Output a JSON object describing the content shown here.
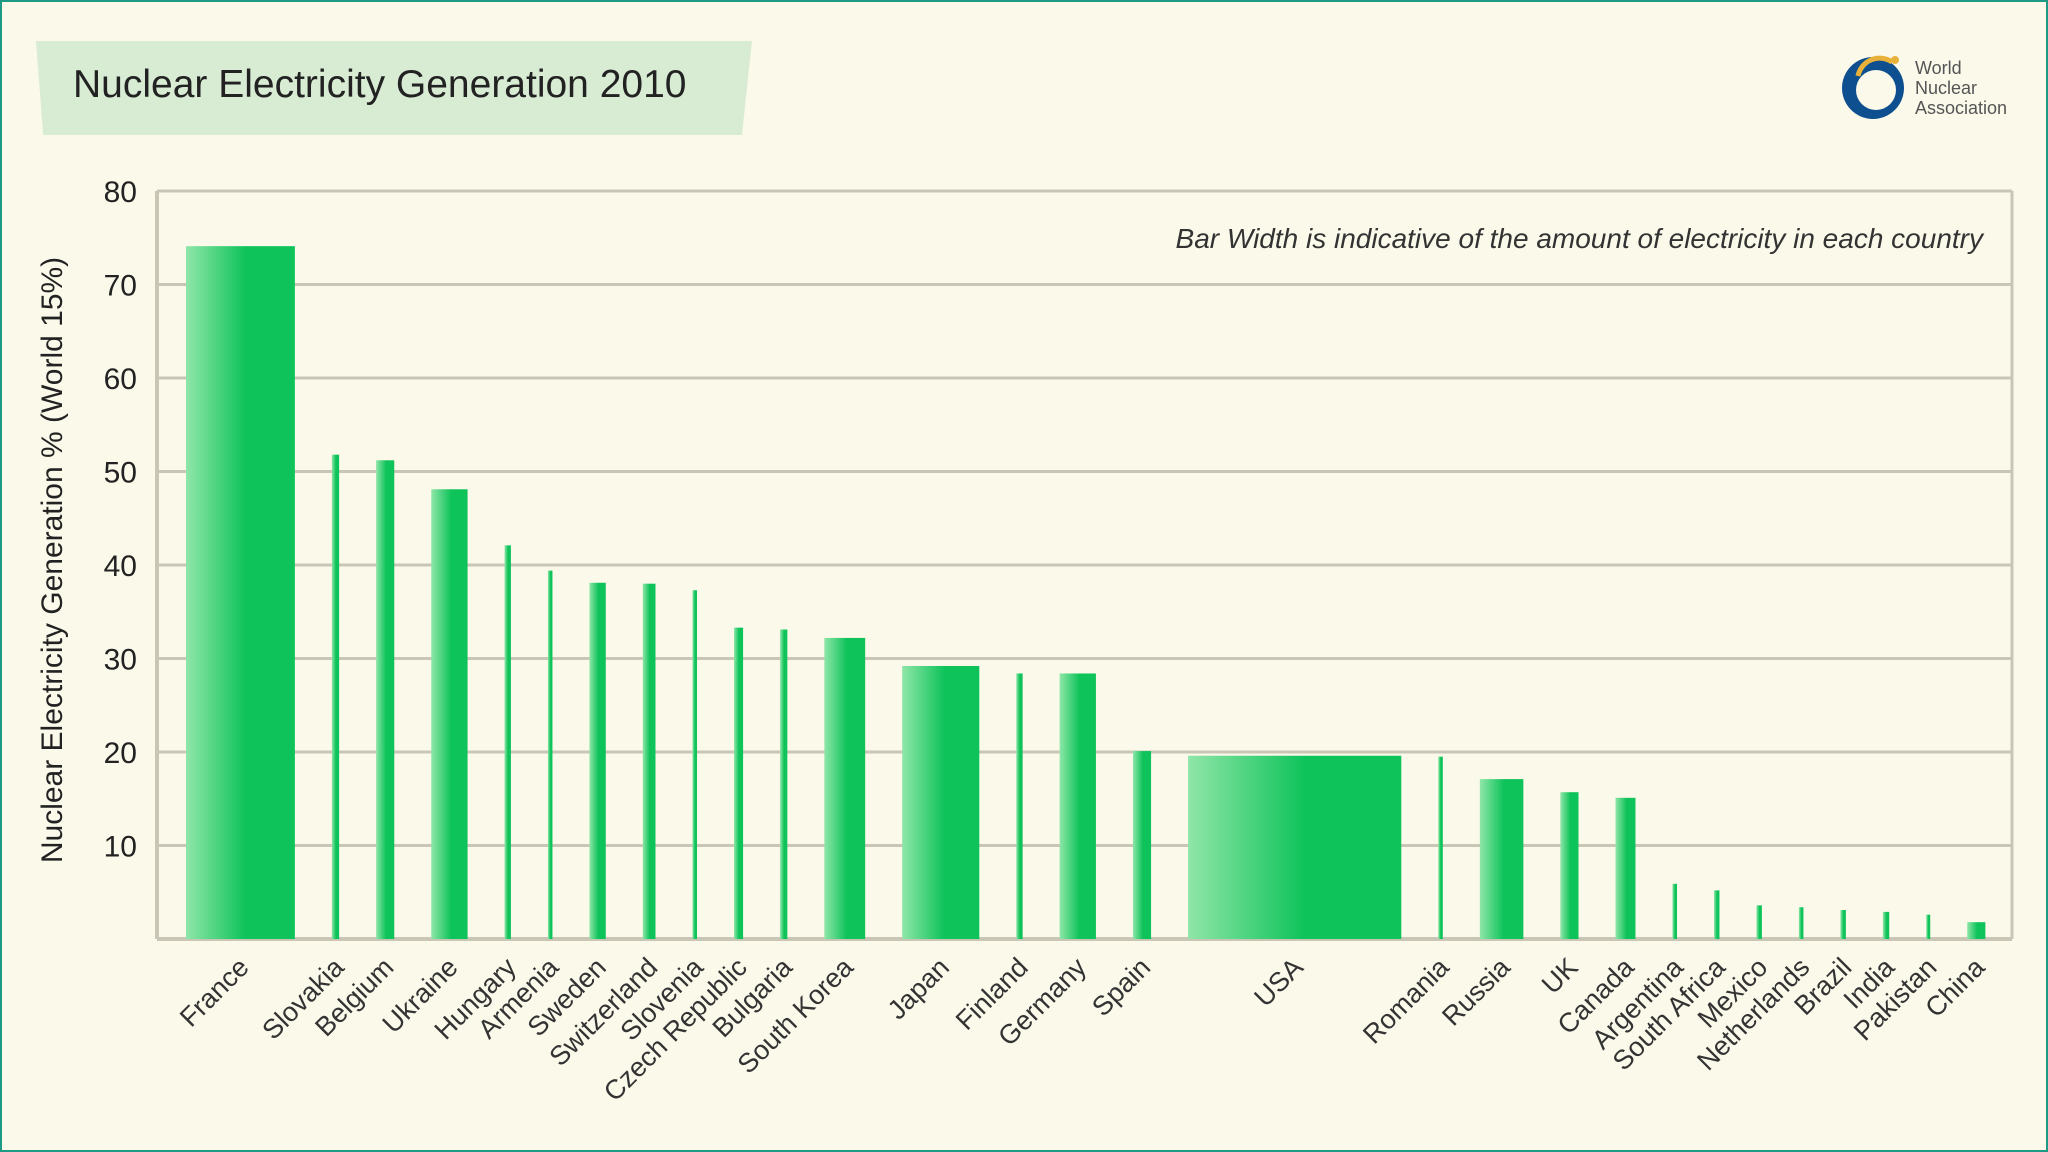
{
  "header": {
    "title": "Nuclear Electricity Generation 2010",
    "logo_text": [
      "World",
      "Nuclear",
      "Association"
    ]
  },
  "colors": {
    "bar_light": "#8fe6a8",
    "bar_dark": "#0ec35a",
    "border": "#1c9a86",
    "background": "#fbf9ea",
    "title_box": "#d8ecd4",
    "grid": "#c9c6b6",
    "logo_blue": "#0d4f8f",
    "logo_gold": "#e8b23a"
  },
  "chart_data": {
    "type": "bar",
    "title": "Nuclear Electricity Generation 2010",
    "ylabel": "Nuclear Electricity Generation % (World 15%)",
    "xlabel": "",
    "annotation": "Bar Width is indicative of the amount of electricity in each country",
    "ylim": [
      0,
      80
    ],
    "yticks": [
      10,
      20,
      30,
      40,
      50,
      60,
      70,
      80
    ],
    "grid": true,
    "categories": [
      "France",
      "Slovakia",
      "Belgium",
      "Ukraine",
      "Hungary",
      "Armenia",
      "Sweden",
      "Switzerland",
      "Slovenia",
      "Czech Republic",
      "Bulgaria",
      "South Korea",
      "Japan",
      "Finland",
      "Germany",
      "Spain",
      "USA",
      "Romania",
      "Russia",
      "UK",
      "Canada",
      "Argentina",
      "South Africa",
      "Mexico",
      "Netherlands",
      "Brazil",
      "India",
      "Pakistan",
      "China"
    ],
    "values": [
      74.1,
      51.8,
      51.2,
      48.1,
      42.1,
      39.4,
      38.1,
      38.0,
      37.3,
      33.3,
      33.1,
      32.2,
      29.2,
      28.4,
      28.4,
      20.1,
      19.6,
      19.5,
      17.1,
      15.7,
      15.1,
      5.9,
      5.2,
      3.6,
      3.4,
      3.1,
      2.9,
      2.6,
      1.8
    ],
    "bar_width_relative": [
      12,
      0.8,
      2,
      4,
      0.7,
      0.5,
      1.8,
      1.4,
      0.5,
      1,
      0.8,
      4.5,
      8.5,
      0.7,
      4,
      2,
      23.5,
      0.5,
      4.8,
      2,
      2.2,
      0.5,
      0.6,
      0.6,
      0.5,
      0.6,
      0.7,
      0.4,
      2
    ]
  }
}
